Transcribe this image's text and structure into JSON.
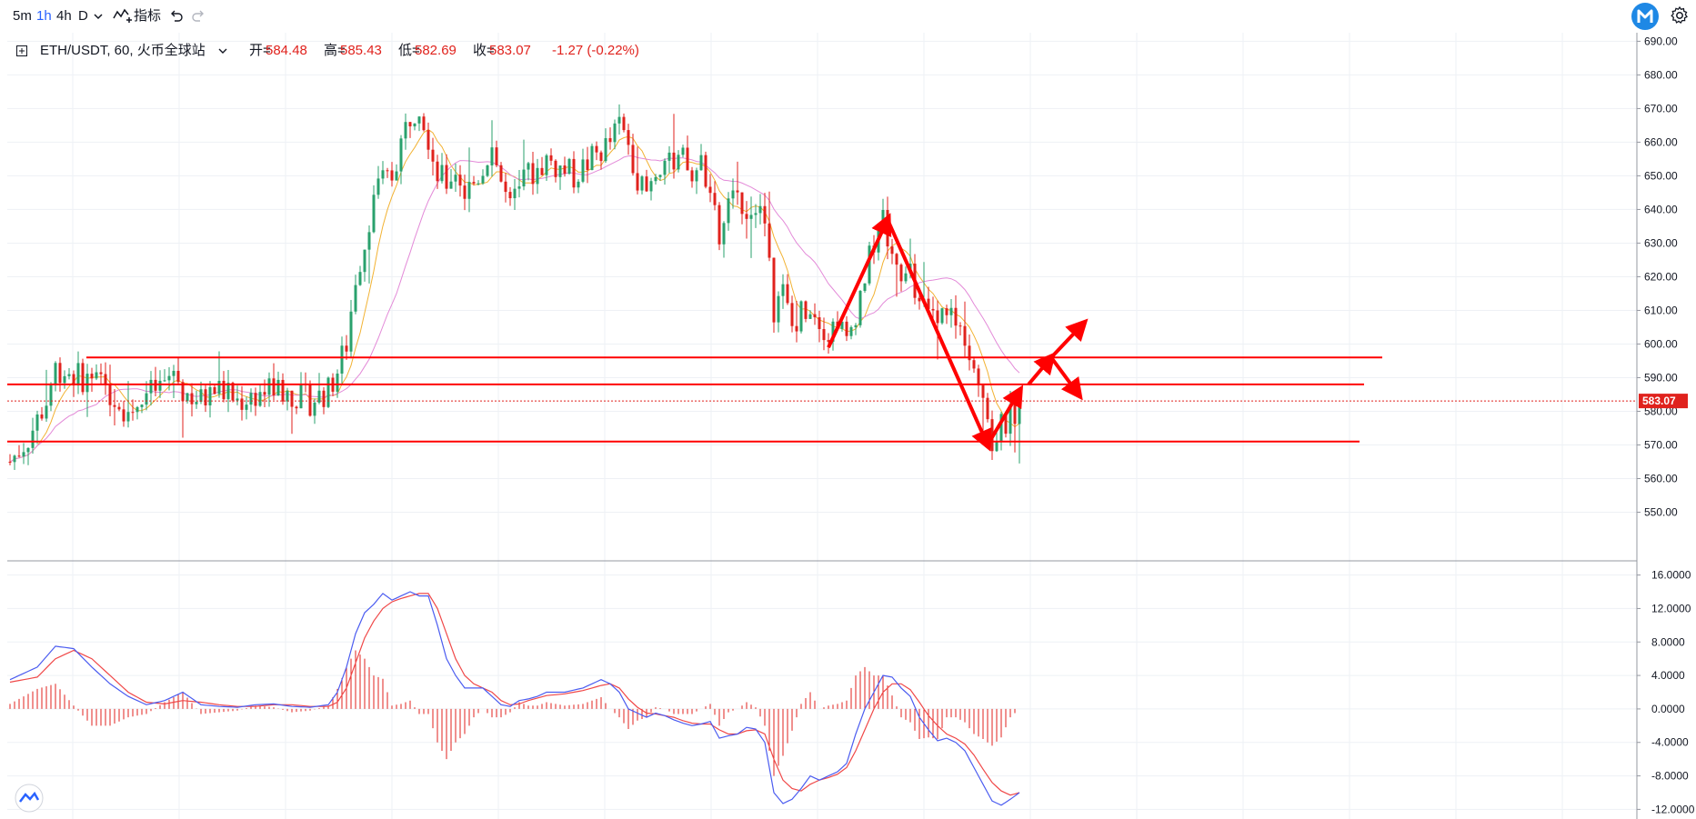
{
  "toolbar": {
    "intervals": [
      {
        "label": "5m",
        "active": false
      },
      {
        "label": "1h",
        "active": true
      },
      {
        "label": "4h",
        "active": false
      },
      {
        "label": "D",
        "active": false
      }
    ],
    "indicators_label": "指标"
  },
  "legend": {
    "symbol": "ETH/USDT, 60, 火币全球站",
    "open_label": "开=",
    "open": "584.48",
    "high_label": "高=",
    "high": "585.43",
    "low_label": "低=",
    "low": "582.69",
    "close_label": "收=",
    "close": "583.07",
    "change": "-1.27 (-0.22%)"
  },
  "price_axis": {
    "labels": [
      "690.00",
      "680.00",
      "670.00",
      "660.00",
      "650.00",
      "640.00",
      "630.00",
      "620.00",
      "610.00",
      "600.00",
      "590.00",
      "580.00",
      "570.00",
      "560.00",
      "550.00"
    ],
    "current_price_label": "583.07"
  },
  "macd_axis": {
    "labels": [
      "16.0000",
      "12.0000",
      "8.0000",
      "4.0000",
      "0.0000",
      "-4.0000",
      "-8.0000",
      "-12.0000"
    ]
  },
  "colors": {
    "up": "#2aa16d",
    "down": "#e0221d",
    "macd_line": "#4b5cf0",
    "signal_line": "#f04848",
    "ma_fast": "#f2b233",
    "ma_slow": "#e38ad8",
    "drawing": "#ff0000",
    "accent": "#2962ff",
    "grid": "#eef1f5"
  },
  "chart_data": {
    "type": "candlestick",
    "symbol": "ETH/USDT",
    "interval": "60",
    "price_range": [
      545,
      692
    ],
    "macd_range": [
      -12.5,
      16.5
    ],
    "last_ohlc": {
      "open": 584.48,
      "high": 585.43,
      "low": 582.69,
      "close": 583.07
    },
    "price_path": [
      [
        0,
        565
      ],
      [
        4,
        572
      ],
      [
        8,
        583
      ],
      [
        10,
        593
      ],
      [
        14,
        591
      ],
      [
        18,
        589
      ],
      [
        22,
        586
      ],
      [
        26,
        580
      ],
      [
        30,
        585
      ],
      [
        34,
        588
      ],
      [
        36,
        592
      ],
      [
        38,
        586
      ],
      [
        42,
        583
      ],
      [
        46,
        587
      ],
      [
        50,
        583
      ],
      [
        54,
        585
      ],
      [
        58,
        587
      ],
      [
        62,
        585
      ],
      [
        66,
        583
      ],
      [
        70,
        586
      ],
      [
        72,
        592
      ],
      [
        74,
        600
      ],
      [
        76,
        620
      ],
      [
        78,
        630
      ],
      [
        80,
        645
      ],
      [
        82,
        648
      ],
      [
        84,
        650
      ],
      [
        86,
        660
      ],
      [
        88,
        668
      ],
      [
        90,
        672
      ],
      [
        92,
        662
      ],
      [
        94,
        650
      ],
      [
        96,
        648
      ],
      [
        98,
        652
      ],
      [
        100,
        645
      ],
      [
        102,
        648
      ],
      [
        104,
        652
      ],
      [
        106,
        660
      ],
      [
        108,
        648
      ],
      [
        110,
        640
      ],
      [
        112,
        645
      ],
      [
        114,
        650
      ],
      [
        116,
        652
      ],
      [
        118,
        655
      ],
      [
        120,
        653
      ],
      [
        124,
        650
      ],
      [
        128,
        655
      ],
      [
        132,
        660
      ],
      [
        134,
        665
      ],
      [
        136,
        660
      ],
      [
        138,
        650
      ],
      [
        140,
        645
      ],
      [
        142,
        652
      ],
      [
        144,
        655
      ],
      [
        146,
        650
      ],
      [
        148,
        655
      ],
      [
        150,
        648
      ],
      [
        152,
        655
      ],
      [
        154,
        645
      ],
      [
        156,
        630
      ],
      [
        158,
        640
      ],
      [
        160,
        645
      ],
      [
        162,
        640
      ],
      [
        164,
        643
      ],
      [
        166,
        635
      ],
      [
        168,
        610
      ],
      [
        170,
        615
      ],
      [
        172,
        605
      ],
      [
        174,
        610
      ],
      [
        176,
        612
      ],
      [
        178,
        608
      ],
      [
        180,
        603
      ],
      [
        182,
        608
      ],
      [
        184,
        600
      ],
      [
        186,
        610
      ],
      [
        188,
        620
      ],
      [
        190,
        630
      ],
      [
        192,
        638
      ],
      [
        194,
        625
      ],
      [
        196,
        622
      ],
      [
        198,
        620
      ],
      [
        200,
        613
      ],
      [
        202,
        610
      ],
      [
        204,
        605
      ],
      [
        206,
        612
      ],
      [
        208,
        605
      ],
      [
        210,
        603
      ],
      [
        212,
        596
      ],
      [
        214,
        585
      ],
      [
        216,
        570
      ],
      [
        218,
        575
      ],
      [
        220,
        578
      ],
      [
        222,
        583
      ]
    ],
    "support_resistance": [
      596,
      588,
      571
    ],
    "macd_path": [
      [
        0,
        3.5
      ],
      [
        6,
        5
      ],
      [
        10,
        7.5
      ],
      [
        14,
        7.2
      ],
      [
        18,
        5
      ],
      [
        22,
        3
      ],
      [
        26,
        1.5
      ],
      [
        30,
        0.5
      ],
      [
        34,
        1
      ],
      [
        38,
        2
      ],
      [
        42,
        0.5
      ],
      [
        46,
        0.3
      ],
      [
        50,
        0.2
      ],
      [
        54,
        0.5
      ],
      [
        58,
        0.6
      ],
      [
        62,
        0.3
      ],
      [
        66,
        0.2
      ],
      [
        70,
        0.5
      ],
      [
        72,
        2
      ],
      [
        74,
        5
      ],
      [
        76,
        9
      ],
      [
        78,
        11.5
      ],
      [
        80,
        12.5
      ],
      [
        82,
        13.8
      ],
      [
        84,
        13
      ],
      [
        86,
        13.5
      ],
      [
        88,
        14
      ],
      [
        90,
        13.5
      ],
      [
        92,
        13.5
      ],
      [
        94,
        10
      ],
      [
        96,
        6
      ],
      [
        98,
        4
      ],
      [
        100,
        2.5
      ],
      [
        102,
        2.5
      ],
      [
        104,
        2.5
      ],
      [
        106,
        1.5
      ],
      [
        108,
        0.5
      ],
      [
        110,
        0.3
      ],
      [
        112,
        1
      ],
      [
        114,
        1.2
      ],
      [
        116,
        1.5
      ],
      [
        118,
        2
      ],
      [
        122,
        2
      ],
      [
        126,
        2.5
      ],
      [
        130,
        3.5
      ],
      [
        132,
        3
      ],
      [
        134,
        2
      ],
      [
        136,
        0
      ],
      [
        138,
        -0.5
      ],
      [
        140,
        -1
      ],
      [
        142,
        -0.5
      ],
      [
        144,
        -0.8
      ],
      [
        146,
        -1.3
      ],
      [
        148,
        -1.7
      ],
      [
        150,
        -2
      ],
      [
        152,
        -1.8
      ],
      [
        154,
        -1.5
      ],
      [
        156,
        -3.5
      ],
      [
        158,
        -3.2
      ],
      [
        160,
        -3
      ],
      [
        162,
        -2.2
      ],
      [
        164,
        -2.4
      ],
      [
        166,
        -4
      ],
      [
        168,
        -10
      ],
      [
        170,
        -11.3
      ],
      [
        172,
        -10.8
      ],
      [
        174,
        -9.5
      ],
      [
        176,
        -8
      ],
      [
        178,
        -8.5
      ],
      [
        180,
        -8
      ],
      [
        182,
        -7.5
      ],
      [
        184,
        -6.5
      ],
      [
        186,
        -3
      ],
      [
        188,
        0
      ],
      [
        190,
        2
      ],
      [
        192,
        4
      ],
      [
        194,
        3.8
      ],
      [
        196,
        2.5
      ],
      [
        198,
        1.5
      ],
      [
        200,
        -1
      ],
      [
        202,
        -2.5
      ],
      [
        204,
        -3.8
      ],
      [
        206,
        -3.5
      ],
      [
        208,
        -4
      ],
      [
        210,
        -5
      ],
      [
        212,
        -7
      ],
      [
        214,
        -9
      ],
      [
        216,
        -11
      ],
      [
        218,
        -11.5
      ],
      [
        220,
        -10.8
      ],
      [
        222,
        -10
      ]
    ],
    "signal_path": [
      [
        0,
        3.2
      ],
      [
        6,
        3.8
      ],
      [
        10,
        6
      ],
      [
        14,
        7
      ],
      [
        18,
        6
      ],
      [
        22,
        4
      ],
      [
        26,
        2
      ],
      [
        30,
        0.8
      ],
      [
        34,
        0.6
      ],
      [
        38,
        1
      ],
      [
        42,
        0.8
      ],
      [
        46,
        0.5
      ],
      [
        50,
        0.3
      ],
      [
        54,
        0.3
      ],
      [
        58,
        0.5
      ],
      [
        62,
        0.5
      ],
      [
        66,
        0.3
      ],
      [
        70,
        0.3
      ],
      [
        72,
        0.8
      ],
      [
        74,
        2.5
      ],
      [
        76,
        5.5
      ],
      [
        78,
        8.5
      ],
      [
        80,
        10.5
      ],
      [
        82,
        12
      ],
      [
        84,
        12.8
      ],
      [
        86,
        13.2
      ],
      [
        88,
        13.5
      ],
      [
        90,
        13.8
      ],
      [
        92,
        13.8
      ],
      [
        94,
        12
      ],
      [
        96,
        9
      ],
      [
        98,
        6
      ],
      [
        100,
        4
      ],
      [
        102,
        3
      ],
      [
        104,
        2.5
      ],
      [
        106,
        2
      ],
      [
        108,
        1
      ],
      [
        110,
        0.5
      ],
      [
        112,
        0.6
      ],
      [
        114,
        1
      ],
      [
        116,
        1.3
      ],
      [
        118,
        1.6
      ],
      [
        122,
        1.8
      ],
      [
        126,
        2.2
      ],
      [
        130,
        2.8
      ],
      [
        132,
        3
      ],
      [
        134,
        2.5
      ],
      [
        136,
        1.2
      ],
      [
        138,
        0.2
      ],
      [
        140,
        -0.5
      ],
      [
        142,
        -0.6
      ],
      [
        144,
        -0.8
      ],
      [
        146,
        -1
      ],
      [
        148,
        -1.4
      ],
      [
        150,
        -1.7
      ],
      [
        152,
        -1.8
      ],
      [
        154,
        -1.8
      ],
      [
        156,
        -2.5
      ],
      [
        158,
        -3
      ],
      [
        160,
        -3
      ],
      [
        162,
        -2.6
      ],
      [
        164,
        -2.5
      ],
      [
        166,
        -3
      ],
      [
        168,
        -6
      ],
      [
        170,
        -8.5
      ],
      [
        172,
        -9.5
      ],
      [
        174,
        -9.8
      ],
      [
        176,
        -9
      ],
      [
        178,
        -8.5
      ],
      [
        180,
        -8.2
      ],
      [
        182,
        -7.8
      ],
      [
        184,
        -7
      ],
      [
        186,
        -5
      ],
      [
        188,
        -2.5
      ],
      [
        190,
        0
      ],
      [
        192,
        2
      ],
      [
        194,
        3
      ],
      [
        196,
        3
      ],
      [
        198,
        2.3
      ],
      [
        200,
        0.8
      ],
      [
        202,
        -0.8
      ],
      [
        204,
        -2
      ],
      [
        206,
        -3
      ],
      [
        208,
        -3.5
      ],
      [
        210,
        -4.2
      ],
      [
        212,
        -5.5
      ],
      [
        214,
        -7.2
      ],
      [
        216,
        -8.8
      ],
      [
        218,
        -9.8
      ],
      [
        220,
        -10.3
      ],
      [
        222,
        -10
      ]
    ]
  }
}
